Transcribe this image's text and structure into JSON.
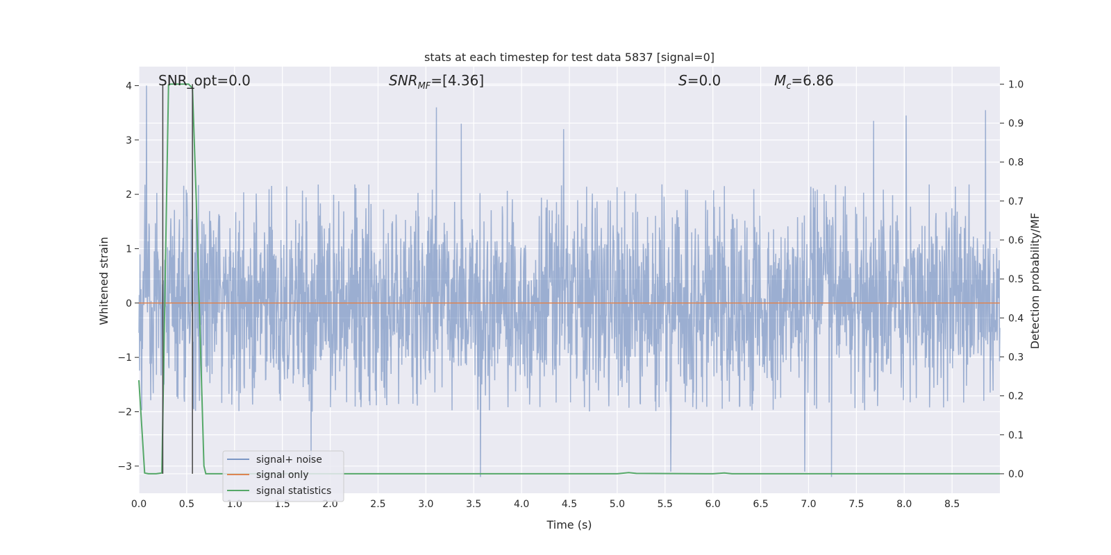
{
  "chart_data": {
    "type": "line",
    "title": "stats at each timestep for test data 5837 [signal=0]",
    "xlabel": "Time (s)",
    "ylabel": "Whitened strain",
    "y2label": "Detection probability/MF",
    "xlim": [
      0.0,
      9.0
    ],
    "ylim": [
      -3.5,
      4.35
    ],
    "y2lim": [
      -0.05,
      1.045
    ],
    "xticks": [
      "0.0",
      "0.5",
      "1.0",
      "1.5",
      "2.0",
      "2.5",
      "3.0",
      "3.5",
      "4.0",
      "4.5",
      "5.0",
      "5.5",
      "6.0",
      "6.5",
      "7.0",
      "7.5",
      "8.0",
      "8.5"
    ],
    "yticks": [
      "4",
      "3",
      "2",
      "1",
      "0",
      "−1",
      "−2",
      "−3"
    ],
    "y2ticks": [
      "1.0",
      "0.9",
      "0.8",
      "0.7",
      "0.6",
      "0.5",
      "0.4",
      "0.3",
      "0.2",
      "0.1",
      "0.0"
    ],
    "grid": true,
    "legend_position": "lower-left",
    "annotations": {
      "snr_opt": "SNR_opt=0.0",
      "snr_mf_base": "SNR",
      "snr_mf_sub": "MF",
      "snr_mf_value": "=[4.36]",
      "s_sym": "S",
      "s_value": "=0.0",
      "mc_base": "M",
      "mc_sub": "c",
      "mc_value": "=6.86"
    },
    "vlines": [
      0.25,
      0.56
    ],
    "noise_envelope_upper_approx": 2.2,
    "noise_envelope_lower_approx": -2.0,
    "noise_extremes": [
      {
        "x": 0.08,
        "y": 4.0
      },
      {
        "x": 3.11,
        "y": 3.6
      },
      {
        "x": 3.37,
        "y": 3.3
      },
      {
        "x": 4.44,
        "y": 3.2
      },
      {
        "x": 7.68,
        "y": 3.35
      },
      {
        "x": 8.02,
        "y": 3.45
      },
      {
        "x": 8.85,
        "y": 3.55
      },
      {
        "x": 3.57,
        "y": -3.2
      },
      {
        "x": 5.56,
        "y": -3.1
      },
      {
        "x": 6.96,
        "y": -3.1
      },
      {
        "x": 7.24,
        "y": -3.2
      },
      {
        "x": 1.8,
        "y": -2.9
      }
    ],
    "series": [
      {
        "name": "signal+ noise",
        "color": "#4C72B0",
        "opacity": 0.5,
        "kind": "dense noise trace"
      },
      {
        "name": "signal only",
        "color": "#DD8452",
        "x": [
          0.0,
          9.0
        ],
        "y": [
          0.0,
          0.0
        ]
      },
      {
        "name": "signal statistics",
        "color": "#55A868",
        "axis": "right",
        "x": [
          0.0,
          0.06,
          0.1,
          0.18,
          0.24,
          0.31,
          0.33,
          0.52,
          0.56,
          0.6,
          0.68,
          0.7,
          1.0,
          4.5,
          5.0,
          5.12,
          5.2,
          6.0,
          6.12,
          6.2,
          9.0
        ],
        "y": [
          0.24,
          0.002,
          0.0,
          0.0,
          0.002,
          0.998,
          1.0,
          1.0,
          0.99,
          0.7,
          0.02,
          0.0,
          0.0,
          0.0,
          0.0,
          0.003,
          0.001,
          0.0,
          0.002,
          0.0,
          0.0
        ]
      }
    ]
  }
}
